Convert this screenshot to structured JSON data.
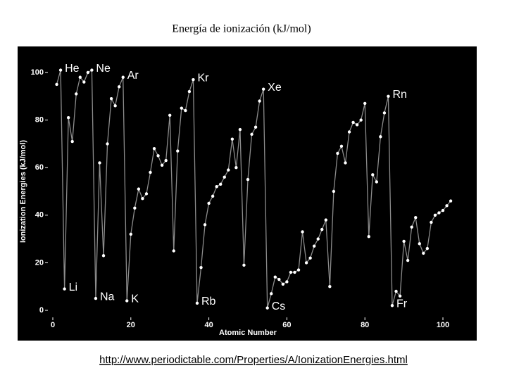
{
  "chart_data": {
    "type": "line",
    "title": "Energía de ionización (kJ/mol)",
    "x_label": "Atomic Number",
    "y_label": "Ionization Energies (kJ/mol)",
    "source": "http://www.periodictable.com/Properties/A/IonizationEnergies.html",
    "x": [
      1,
      2,
      3,
      4,
      5,
      6,
      7,
      8,
      9,
      10,
      11,
      12,
      13,
      14,
      15,
      16,
      17,
      18,
      19,
      20,
      21,
      22,
      23,
      24,
      25,
      26,
      27,
      28,
      29,
      30,
      31,
      32,
      33,
      34,
      35,
      36,
      37,
      38,
      39,
      40,
      41,
      42,
      43,
      44,
      45,
      46,
      47,
      48,
      49,
      50,
      51,
      52,
      53,
      54,
      55,
      56,
      57,
      58,
      59,
      60,
      61,
      62,
      63,
      64,
      65,
      66,
      67,
      68,
      69,
      70,
      71,
      72,
      73,
      74,
      75,
      76,
      77,
      78,
      79,
      80,
      81,
      82,
      83,
      84,
      85,
      86,
      87,
      88,
      89,
      90,
      91,
      92,
      93,
      94,
      95,
      96,
      97,
      98,
      99,
      100,
      101,
      102
    ],
    "series": [
      {
        "name": "Ionization Energies",
        "color": "#8c8c8c",
        "values": [
          95,
          101,
          9,
          81,
          71,
          91,
          98,
          96,
          100,
          101,
          5,
          62,
          23,
          70,
          89,
          86,
          94,
          98,
          4,
          32,
          43,
          51,
          47,
          49,
          58,
          68,
          65,
          61,
          63,
          82,
          25,
          67,
          85,
          84,
          92,
          97,
          3,
          18,
          36,
          45,
          48,
          52,
          53,
          56,
          59,
          72,
          60,
          76,
          19,
          55,
          74,
          77,
          88,
          93,
          1,
          7,
          14,
          13,
          11,
          12,
          16,
          16,
          17,
          33,
          20,
          22,
          27,
          30,
          34,
          38,
          10,
          50,
          66,
          69,
          62,
          75,
          79,
          78,
          80,
          87,
          31,
          57,
          54,
          73,
          83,
          90,
          2,
          8,
          6,
          29,
          21,
          35,
          39,
          28,
          24,
          26,
          37,
          40,
          41,
          42,
          44,
          46
        ]
      }
    ],
    "annotations": [
      {
        "text": "He",
        "x": 2
      },
      {
        "text": "Ne",
        "x": 10
      },
      {
        "text": "Ar",
        "x": 18
      },
      {
        "text": "Kr",
        "x": 36
      },
      {
        "text": "Xe",
        "x": 54
      },
      {
        "text": "Rn",
        "x": 86
      },
      {
        "text": "Li",
        "x": 3
      },
      {
        "text": "Na",
        "x": 11
      },
      {
        "text": "K",
        "x": 19
      },
      {
        "text": "Rb",
        "x": 37
      },
      {
        "text": "Cs",
        "x": 55
      },
      {
        "text": "Fr",
        "x": 87
      }
    ],
    "xlim": [
      0,
      100
    ],
    "xticks": [
      0,
      20,
      40,
      60,
      80,
      100
    ],
    "ylim": [
      0,
      100
    ],
    "yticks": [
      0,
      20,
      40,
      60,
      80,
      100
    ],
    "marker_color": "#ffffff",
    "background": "#000000"
  }
}
